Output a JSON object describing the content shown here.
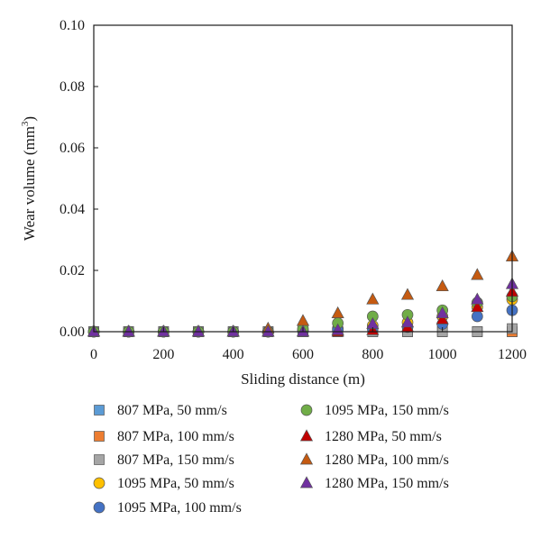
{
  "chart_data": {
    "type": "scatter",
    "title": "",
    "xlabel": "Sliding distance (m)",
    "ylabel_main": "Wear volume (mm",
    "ylabel_sup": "3",
    "ylabel_close": ")",
    "xlim": [
      0,
      1200
    ],
    "ylim": [
      0,
      0.1
    ],
    "xticks": [
      0,
      200,
      400,
      600,
      800,
      1000,
      1200
    ],
    "xtick_labels": [
      "0",
      "200",
      "400",
      "600",
      "800",
      "1000",
      "1200"
    ],
    "yticks": [
      0,
      0.02,
      0.04,
      0.06,
      0.08,
      0.1
    ],
    "ytick_labels": [
      "0.00",
      "0.02",
      "0.04",
      "0.06",
      "0.08",
      "0.10"
    ],
    "grid": false,
    "legend_position": "bottom",
    "x": [
      0,
      100,
      200,
      300,
      400,
      500,
      600,
      700,
      800,
      900,
      1000,
      1100,
      1200
    ],
    "series": [
      {
        "name": "807 MPa, 50 mm/s",
        "marker": "square",
        "color": "#5b9bd5",
        "values": [
          0,
          0,
          0,
          0,
          0,
          0,
          0,
          0,
          0,
          0,
          0,
          0,
          0
        ]
      },
      {
        "name": "807 MPa, 100 mm/s",
        "marker": "square",
        "color": "#ed7d31",
        "values": [
          0,
          0,
          0,
          0,
          0,
          0,
          0,
          0,
          0,
          0,
          0,
          0,
          0
        ]
      },
      {
        "name": "807 MPa, 150 mm/s",
        "marker": "square",
        "color": "#a5a5a5",
        "values": [
          0,
          0,
          0,
          0,
          0,
          0,
          0,
          0,
          0,
          0,
          0,
          0,
          0.001
        ]
      },
      {
        "name": "1095 MPa, 50 mm/s",
        "marker": "circle",
        "color": "#ffc000",
        "values": [
          0,
          0,
          0,
          0,
          0,
          0,
          0.0005,
          0.001,
          0.002,
          0.003,
          0.005,
          0.008,
          0.0105
        ]
      },
      {
        "name": "1095 MPa, 100 mm/s",
        "marker": "circle",
        "color": "#4472c4",
        "values": [
          0,
          0,
          0,
          0,
          0,
          0,
          0.0002,
          0.0005,
          0.001,
          0.0015,
          0.0025,
          0.005,
          0.007
        ]
      },
      {
        "name": "1095 MPa, 150 mm/s",
        "marker": "circle",
        "color": "#70ad47",
        "values": [
          0,
          0,
          0,
          0,
          0,
          0,
          0.001,
          0.0028,
          0.005,
          0.0055,
          0.007,
          0.0095,
          0.0115
        ]
      },
      {
        "name": "1280 MPa, 50 mm/s",
        "marker": "triangle",
        "color": "#c00000",
        "values": [
          0,
          0,
          0,
          0,
          0,
          0,
          0,
          0,
          0.0005,
          0.0015,
          0.004,
          0.008,
          0.013
        ]
      },
      {
        "name": "1280 MPa, 100 mm/s",
        "marker": "triangle",
        "color": "#c55a11",
        "values": [
          0,
          0,
          0,
          0,
          0,
          0.001,
          0.0035,
          0.006,
          0.0105,
          0.012,
          0.0148,
          0.0185,
          0.0245
        ]
      },
      {
        "name": "1280 MPa, 150 mm/s",
        "marker": "triangle",
        "color": "#7030a0",
        "values": [
          0,
          0,
          0,
          0,
          0,
          0,
          0,
          0.0005,
          0.0025,
          0.003,
          0.006,
          0.0105,
          0.0155
        ]
      }
    ]
  }
}
